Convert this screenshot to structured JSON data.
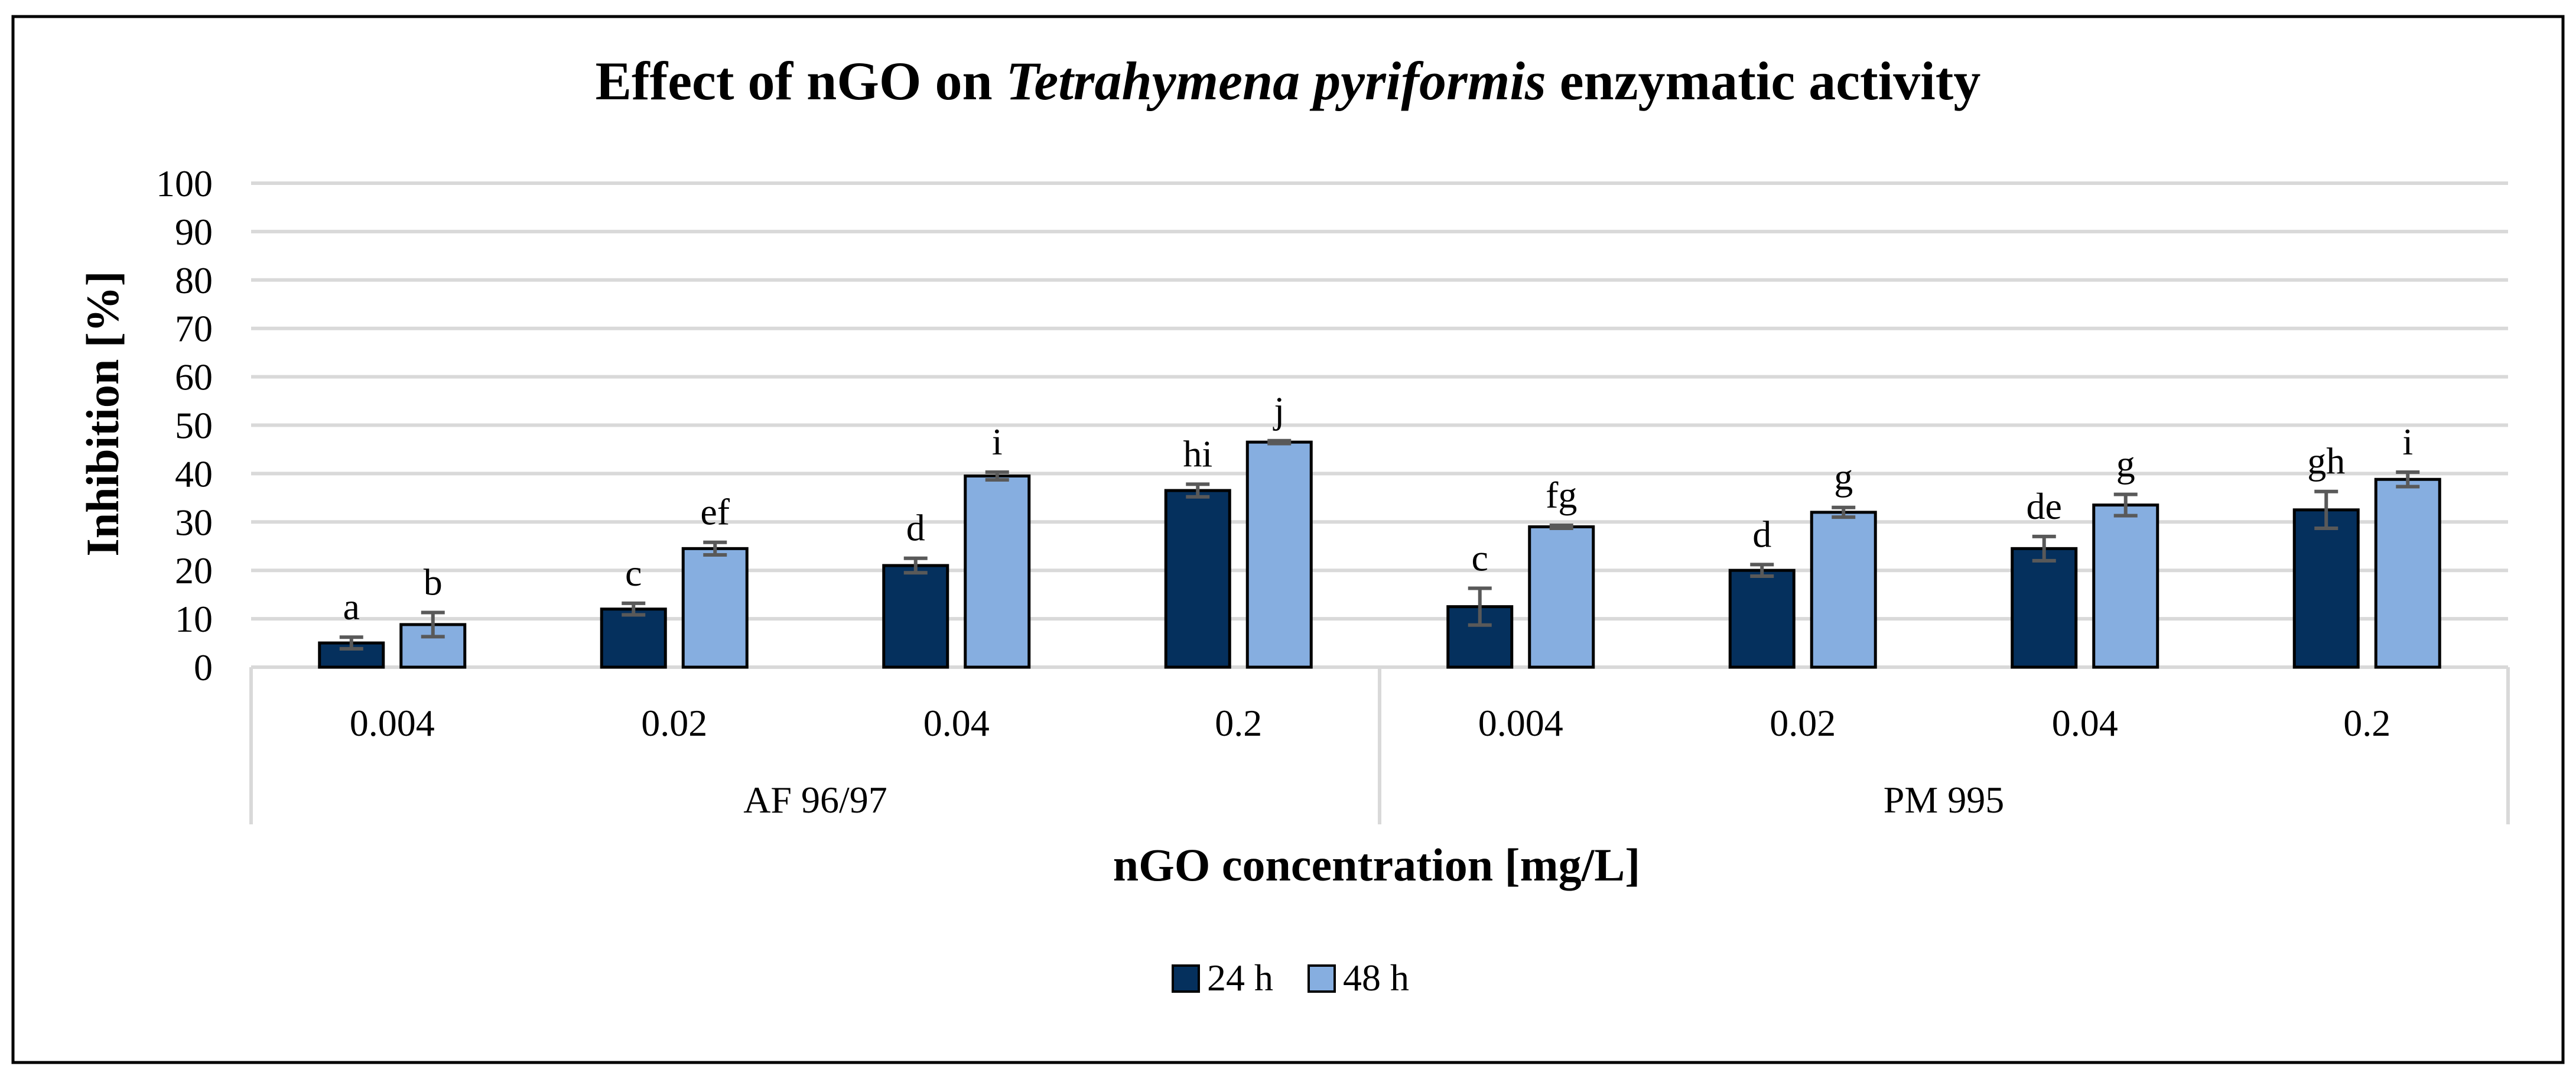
{
  "chart_data": {
    "type": "bar",
    "title_parts": [
      {
        "text": "Effect of nGO on ",
        "italic": false
      },
      {
        "text": "Tetrahymena pyriformis",
        "italic": true
      },
      {
        "text": " enzymatic activity",
        "italic": false
      }
    ],
    "xlabel": "nGO concentration [mg/L]",
    "ylabel": "Inhibition [%]",
    "ylim": [
      0,
      100
    ],
    "yticks": [
      "0",
      "10",
      "20",
      "30",
      "40",
      "50",
      "60",
      "70",
      "80",
      "90",
      "100"
    ],
    "grid": true,
    "legend_position": "bottom-center",
    "groups": [
      {
        "name": "AF 96/97",
        "categories": [
          "0.004",
          "0.02",
          "0.04",
          "0.2"
        ]
      },
      {
        "name": "PM 995",
        "categories": [
          "0.004",
          "0.02",
          "0.04",
          "0.2"
        ]
      }
    ],
    "series": [
      {
        "name": "24 h",
        "color": "#05305D",
        "values": [
          5,
          12,
          21,
          36.5,
          12.5,
          20,
          24.5,
          32.5
        ],
        "errors": [
          1.2,
          1.2,
          1.5,
          1.3,
          3.8,
          1.2,
          2.5,
          3.8
        ],
        "labels": [
          "a",
          "c",
          "d",
          "hi",
          "c",
          "d",
          "de",
          "gh"
        ]
      },
      {
        "name": "48 h",
        "color": "#86AEE0",
        "values": [
          8.8,
          24.5,
          39.5,
          46.5,
          29,
          32,
          33.5,
          38.8
        ],
        "errors": [
          2.5,
          1.3,
          0.8,
          0.3,
          0.3,
          1.0,
          2.2,
          1.5
        ],
        "labels": [
          "b",
          "ef",
          "i",
          "j",
          "fg",
          "g",
          "g",
          "i"
        ]
      }
    ]
  }
}
